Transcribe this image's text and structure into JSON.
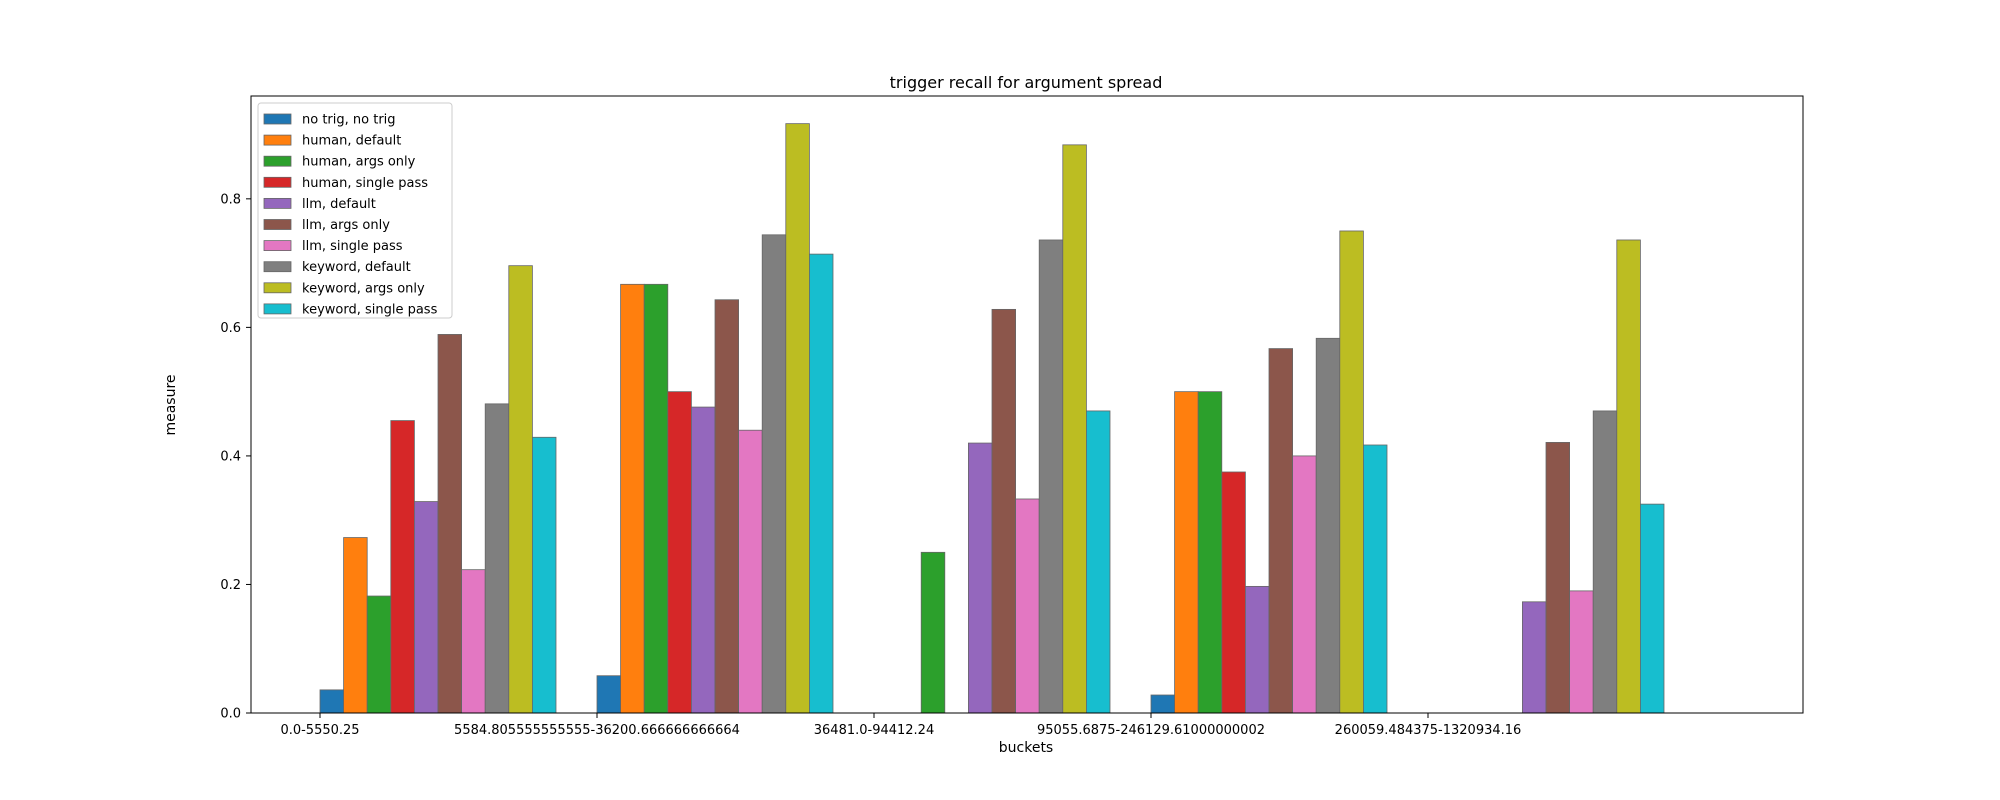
{
  "chart_data": {
    "type": "bar",
    "title": "trigger recall for argument spread",
    "xlabel": "buckets",
    "ylabel": "measure",
    "ylim": [
      0,
      0.96
    ],
    "yticks": [
      "0.0",
      "0.2",
      "0.4",
      "0.6",
      "0.8"
    ],
    "grid": false,
    "legend_position": "top-left",
    "categories": [
      "0.0-5550.25",
      "5584.805555555555-36200.666666666664",
      "36481.0-94412.24",
      "95055.6875-246129.61000000002",
      "260059.484375-1320934.16"
    ],
    "series": [
      {
        "name": "no trig, no trig",
        "color": "#1f77b4",
        "values": [
          0.036,
          0.058,
          0,
          0.028,
          0
        ]
      },
      {
        "name": "human, default",
        "color": "#ff7f0e",
        "values": [
          0.273,
          0.667,
          0,
          0.5,
          0
        ]
      },
      {
        "name": "human, args only",
        "color": "#2ca02c",
        "values": [
          0.182,
          0.667,
          0.25,
          0.5,
          0
        ]
      },
      {
        "name": "human, single pass",
        "color": "#d62728",
        "values": [
          0.455,
          0.5,
          0,
          0.375,
          0
        ]
      },
      {
        "name": "llm, default",
        "color": "#9467bd",
        "values": [
          0.329,
          0.476,
          0.42,
          0.197,
          0.173
        ]
      },
      {
        "name": "llm, args only",
        "color": "#8c564b",
        "values": [
          0.589,
          0.643,
          0.628,
          0.567,
          0.421
        ]
      },
      {
        "name": "llm, single pass",
        "color": "#e377c2",
        "values": [
          0.223,
          0.44,
          0.333,
          0.4,
          0.19
        ]
      },
      {
        "name": "keyword, default",
        "color": "#7f7f7f",
        "values": [
          0.481,
          0.744,
          0.736,
          0.583,
          0.47
        ]
      },
      {
        "name": "keyword, args only",
        "color": "#bcbd22",
        "values": [
          0.696,
          0.917,
          0.884,
          0.75,
          0.736
        ]
      },
      {
        "name": "keyword, single pass",
        "color": "#17becf",
        "values": [
          0.429,
          0.714,
          0.47,
          0.417,
          0.325
        ]
      }
    ]
  }
}
